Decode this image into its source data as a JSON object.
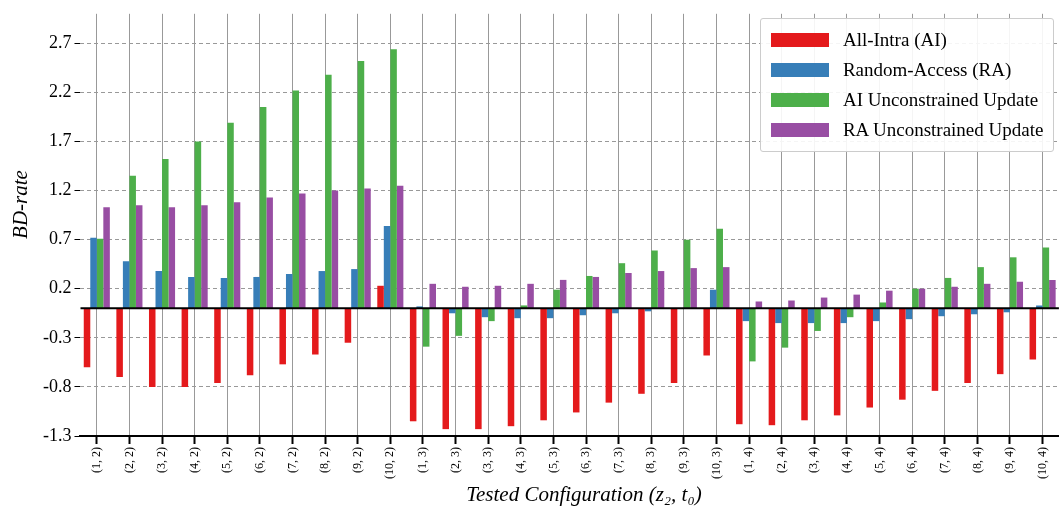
{
  "chart_data": {
    "type": "bar",
    "xlabel": "Tested Configuration (z₂, t₀)",
    "ylabel": "BD-rate",
    "categories": [
      "(1, 2)",
      "(2, 2)",
      "(3, 2)",
      "(4, 2)",
      "(5, 2)",
      "(6, 2)",
      "(7, 2)",
      "(8, 2)",
      "(9, 2)",
      "(10, 2)",
      "(1, 3)",
      "(2, 3)",
      "(3, 3)",
      "(4, 3)",
      "(5, 3)",
      "(6, 3)",
      "(7, 3)",
      "(8, 3)",
      "(9, 3)",
      "(10, 3)",
      "(1, 4)",
      "(2, 4)",
      "(3, 4)",
      "(4, 4)",
      "(5, 4)",
      "(6, 4)",
      "(7, 4)",
      "(8, 4)",
      "(9, 4)",
      "(10, 4)"
    ],
    "series": [
      {
        "name": "All-Intra (AI)",
        "color": "#e41a1c",
        "values": [
          -0.6,
          -0.7,
          -0.8,
          -0.8,
          -0.76,
          -0.68,
          -0.57,
          -0.47,
          -0.35,
          0.23,
          -1.15,
          -1.23,
          -1.23,
          -1.2,
          -1.14,
          -1.06,
          -0.96,
          -0.87,
          -0.76,
          -0.48,
          -1.18,
          -1.19,
          -1.14,
          -1.09,
          -1.01,
          -0.93,
          -0.84,
          -0.76,
          -0.67,
          -0.52
        ]
      },
      {
        "name": "Random-Access (RA)",
        "color": "#377eb8",
        "values": [
          0.72,
          0.48,
          0.38,
          0.32,
          0.31,
          0.32,
          0.35,
          0.38,
          0.4,
          0.84,
          0.02,
          -0.05,
          -0.09,
          -0.1,
          -0.1,
          -0.07,
          -0.05,
          -0.03,
          0,
          0.19,
          -0.13,
          -0.15,
          -0.15,
          -0.15,
          -0.13,
          -0.11,
          -0.08,
          -0.06,
          -0.04,
          0.03
        ]
      },
      {
        "name": "AI Unconstrained Update",
        "color": "#4daf4a",
        "values": [
          0.71,
          1.35,
          1.52,
          1.7,
          1.89,
          2.05,
          2.22,
          2.38,
          2.52,
          2.64,
          -0.39,
          -0.28,
          -0.13,
          0.03,
          0.19,
          0.33,
          0.46,
          0.59,
          0.7,
          0.81,
          -0.54,
          -0.4,
          -0.23,
          -0.09,
          0.06,
          0.2,
          0.31,
          0.42,
          0.52,
          0.62
        ]
      },
      {
        "name": "RA Unconstrained Update",
        "color": "#984ea3",
        "values": [
          1.03,
          1.05,
          1.03,
          1.05,
          1.08,
          1.13,
          1.17,
          1.2,
          1.22,
          1.25,
          0.25,
          0.22,
          0.23,
          0.25,
          0.29,
          0.32,
          0.36,
          0.38,
          0.41,
          0.42,
          0.07,
          0.08,
          0.11,
          0.14,
          0.18,
          0.2,
          0.22,
          0.25,
          0.27,
          0.29
        ]
      }
    ],
    "ylim": [
      -1.3,
      3.0
    ],
    "yticks": [
      -1.3,
      -0.8,
      -0.3,
      0.2,
      0.7,
      1.2,
      1.7,
      2.2,
      2.7
    ],
    "ref_lines": [
      {
        "axis": "y",
        "value": 0,
        "color": "#000000"
      }
    ],
    "grid": true,
    "legend": "top right"
  }
}
